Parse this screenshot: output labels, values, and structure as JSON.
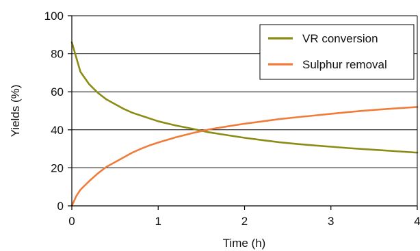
{
  "chart_data": {
    "type": "line",
    "title": "",
    "xlabel": "Time (h)",
    "ylabel": "Yields (%)",
    "xlim": [
      0,
      4
    ],
    "ylim": [
      0,
      100
    ],
    "xticks": [
      "0",
      "1",
      "2",
      "3",
      "4"
    ],
    "yticks": [
      "0",
      "20",
      "40",
      "60",
      "80",
      "100"
    ],
    "grid": "horizontal",
    "legend_position": "top-right",
    "series": [
      {
        "name": "VR conversion",
        "color": "#8b8c16",
        "x": [
          0,
          0.1,
          0.2,
          0.3,
          0.4,
          0.5,
          0.6,
          0.7,
          0.8,
          0.9,
          1.0,
          1.2,
          1.4,
          1.5,
          1.6,
          1.8,
          2.0,
          2.2,
          2.4,
          2.6,
          2.8,
          3.0,
          3.2,
          3.4,
          3.6,
          3.8,
          4.0
        ],
        "y": [
          86,
          70.5,
          64,
          59.5,
          56,
          53.5,
          51,
          49,
          47.5,
          46,
          44.5,
          42.3,
          40.5,
          39.5,
          38.6,
          37.2,
          35.8,
          34.6,
          33.5,
          32.6,
          31.8,
          31.1,
          30.4,
          29.8,
          29.2,
          28.6,
          28
        ]
      },
      {
        "name": "Sulphur removal",
        "color": "#f07c3c",
        "x": [
          0,
          0.05,
          0.1,
          0.2,
          0.3,
          0.4,
          0.5,
          0.6,
          0.7,
          0.8,
          0.9,
          1.0,
          1.2,
          1.4,
          1.5,
          1.6,
          1.8,
          2.0,
          2.2,
          2.4,
          2.6,
          2.8,
          3.0,
          3.2,
          3.4,
          3.6,
          3.8,
          4.0
        ],
        "y": [
          0,
          5,
          8.5,
          13,
          17,
          20.5,
          23,
          25.5,
          28,
          30,
          31.8,
          33.3,
          36,
          38.3,
          39.3,
          40.3,
          41.8,
          43.2,
          44.4,
          45.6,
          46.6,
          47.5,
          48.4,
          49.3,
          50.1,
          50.8,
          51.4,
          52
        ]
      }
    ]
  }
}
